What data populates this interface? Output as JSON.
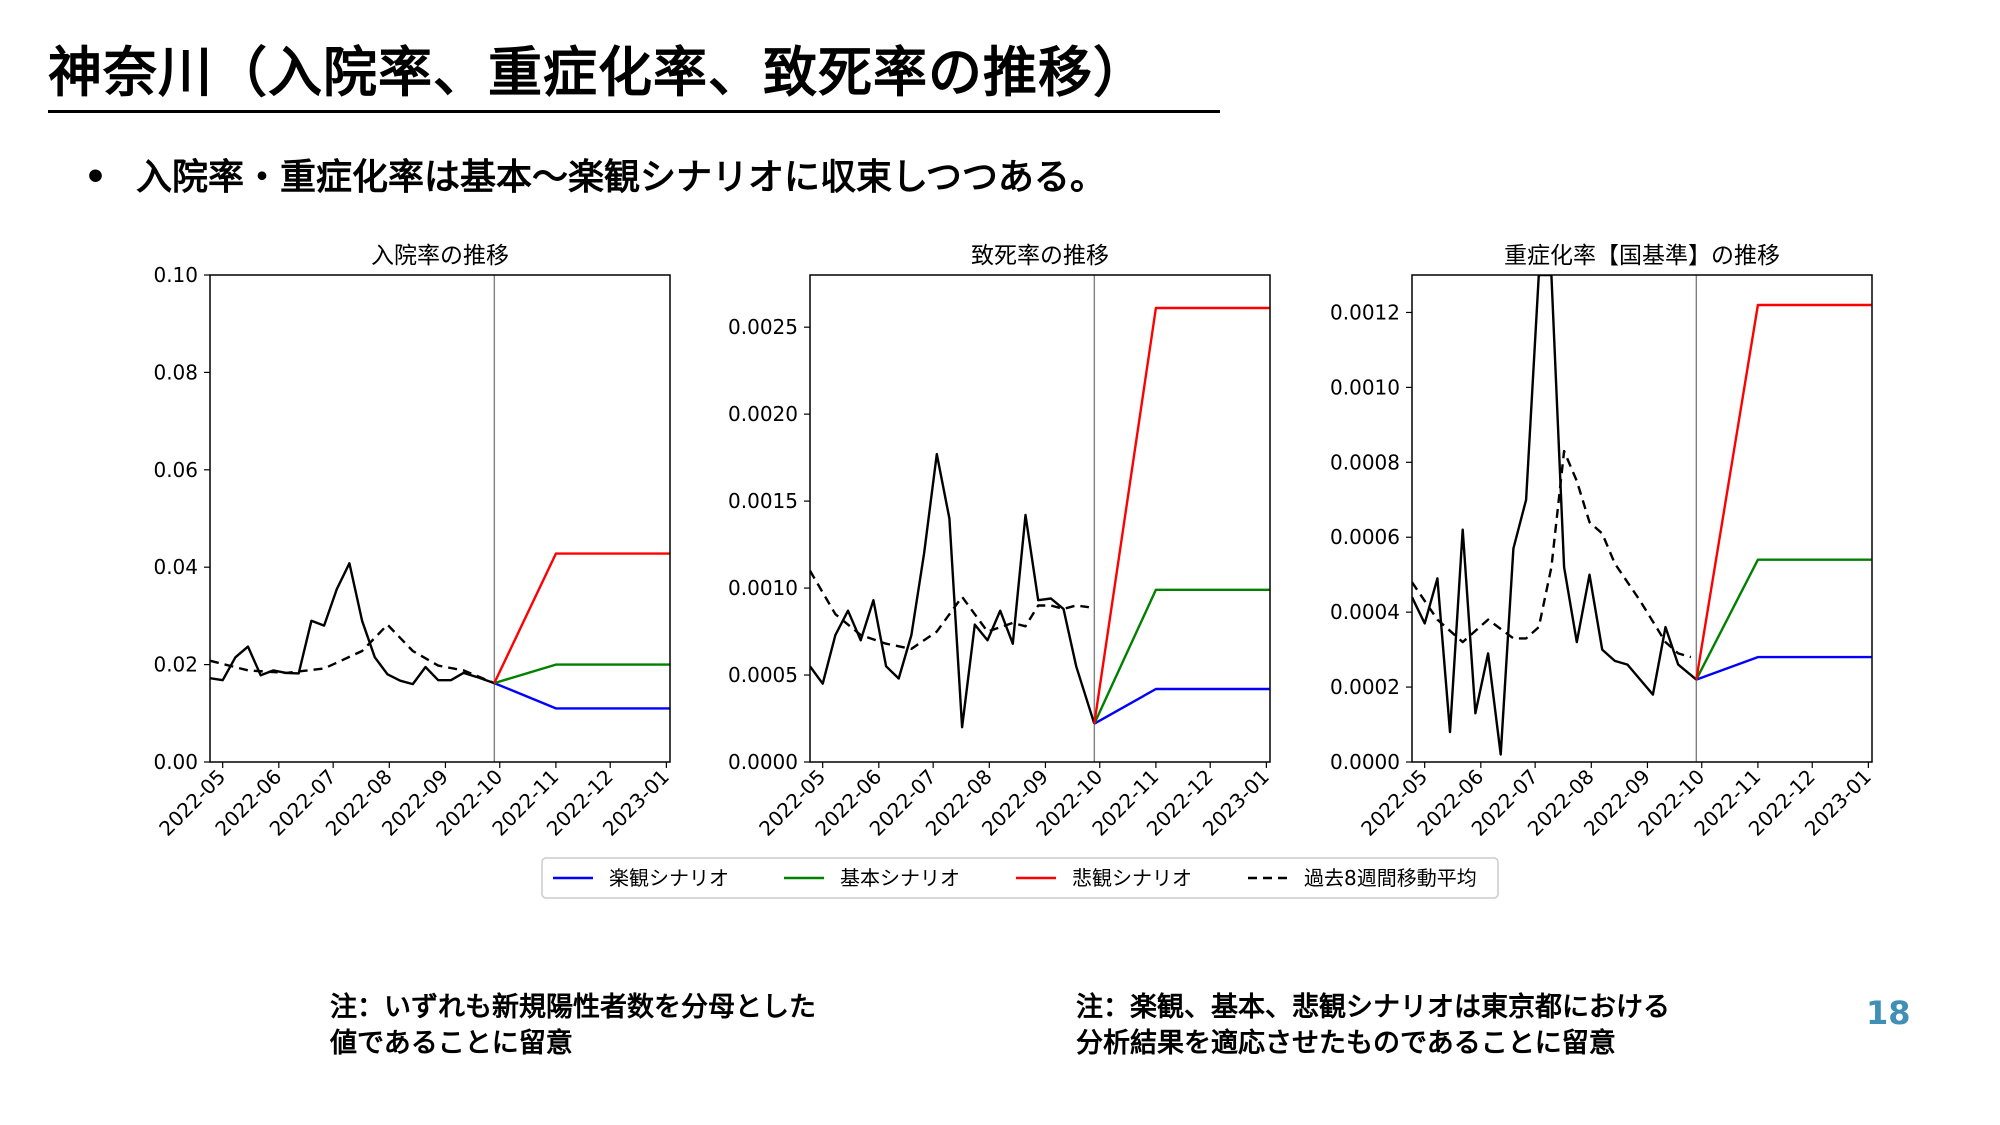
{
  "slide": {
    "title": "神奈川（入院率、重症化率、致死率の推移）",
    "bullet": "入院率・重症化率は基本〜楽観シナリオに収束しつつある。",
    "bullet_marker": "•",
    "note_left": [
      "注：いずれも新規陽性者数を分母とした",
      "値であることに留意"
    ],
    "note_right": [
      "注：楽観、基本、悲観シナリオは東京都における",
      "分析結果を適応させたものであることに留意"
    ],
    "page_number": "18"
  },
  "colors": {
    "optimistic": "#0000ff",
    "base": "#008000",
    "pessimistic": "#ff0000",
    "actual": "#000000",
    "moving_avg": "#000000",
    "divider": "#808080",
    "page_number": "#3f8fb7"
  },
  "legend": [
    {
      "key": "optimistic",
      "label": "楽観シナリオ",
      "style": "solid"
    },
    {
      "key": "base",
      "label": "基本シナリオ",
      "style": "solid"
    },
    {
      "key": "pessimistic",
      "label": "悲観シナリオ",
      "style": "solid"
    },
    {
      "key": "moving_avg",
      "label": "過去8週間移動平均",
      "style": "dashed"
    }
  ],
  "chart_data": [
    {
      "type": "line",
      "title": "入院率の推移",
      "xlabel": "",
      "ylabel": "",
      "x_ticks": [
        "2022-05",
        "2022-06",
        "2022-07",
        "2022-08",
        "2022-09",
        "2022-10",
        "2022-11",
        "2022-12",
        "2023-01"
      ],
      "xlim": [
        "2022-04-24",
        "2023-01-03"
      ],
      "ylim": [
        0,
        0.1
      ],
      "y_ticks": [
        "0.00",
        "0.02",
        "0.04",
        "0.06",
        "0.08",
        "0.10"
      ],
      "divider_x": "2022-09-28",
      "grid": false,
      "series": [
        {
          "key": "actual",
          "x": [
            "2022-04-24",
            "2022-05-01",
            "2022-05-08",
            "2022-05-15",
            "2022-05-22",
            "2022-05-29",
            "2022-06-05",
            "2022-06-12",
            "2022-06-19",
            "2022-06-26",
            "2022-07-03",
            "2022-07-10",
            "2022-07-17",
            "2022-07-24",
            "2022-07-31",
            "2022-08-07",
            "2022-08-14",
            "2022-08-21",
            "2022-08-28",
            "2022-09-04",
            "2022-09-11",
            "2022-09-18",
            "2022-09-25",
            "2022-09-28"
          ],
          "y": [
            0.0172,
            0.0168,
            0.0215,
            0.0237,
            0.0178,
            0.0188,
            0.0183,
            0.0182,
            0.029,
            0.028,
            0.0355,
            0.0408,
            0.029,
            0.0215,
            0.018,
            0.0167,
            0.016,
            0.0195,
            0.0168,
            0.0168,
            0.0183,
            0.0175,
            0.0166,
            0.0162
          ]
        },
        {
          "key": "moving_avg",
          "x": [
            "2022-04-24",
            "2022-05-15",
            "2022-06-05",
            "2022-06-26",
            "2022-07-17",
            "2022-07-31",
            "2022-08-14",
            "2022-08-28",
            "2022-09-11",
            "2022-09-28"
          ],
          "y": [
            0.0208,
            0.0188,
            0.0183,
            0.0192,
            0.0228,
            0.0282,
            0.0228,
            0.0198,
            0.0188,
            0.0162
          ]
        },
        {
          "key": "optimistic",
          "x": [
            "2022-09-28",
            "2022-11-01",
            "2023-01-03"
          ],
          "y": [
            0.0162,
            0.011,
            0.011
          ]
        },
        {
          "key": "base",
          "x": [
            "2022-09-28",
            "2022-11-01",
            "2023-01-03"
          ],
          "y": [
            0.0162,
            0.02,
            0.02
          ]
        },
        {
          "key": "pessimistic",
          "x": [
            "2022-09-28",
            "2022-11-01",
            "2023-01-03"
          ],
          "y": [
            0.0162,
            0.0428,
            0.0428
          ]
        }
      ]
    },
    {
      "type": "line",
      "title": "致死率の推移",
      "xlabel": "",
      "ylabel": "",
      "x_ticks": [
        "2022-05",
        "2022-06",
        "2022-07",
        "2022-08",
        "2022-09",
        "2022-10",
        "2022-11",
        "2022-12",
        "2023-01"
      ],
      "xlim": [
        "2022-04-24",
        "2023-01-03"
      ],
      "ylim": [
        0,
        0.0028
      ],
      "y_ticks": [
        "0.0000",
        "0.0005",
        "0.0010",
        "0.0015",
        "0.0020",
        "0.0025"
      ],
      "divider_x": "2022-09-28",
      "grid": false,
      "series": [
        {
          "key": "actual",
          "x": [
            "2022-04-24",
            "2022-05-01",
            "2022-05-08",
            "2022-05-15",
            "2022-05-22",
            "2022-05-29",
            "2022-06-05",
            "2022-06-12",
            "2022-06-19",
            "2022-06-26",
            "2022-07-03",
            "2022-07-10",
            "2022-07-17",
            "2022-07-24",
            "2022-07-31",
            "2022-08-07",
            "2022-08-14",
            "2022-08-21",
            "2022-08-28",
            "2022-09-04",
            "2022-09-11",
            "2022-09-18",
            "2022-09-28"
          ],
          "y": [
            0.00055,
            0.00045,
            0.00073,
            0.00087,
            0.0007,
            0.00093,
            0.00055,
            0.00048,
            0.00073,
            0.0012,
            0.00177,
            0.0014,
            0.0002,
            0.00079,
            0.0007,
            0.00087,
            0.00068,
            0.00142,
            0.00093,
            0.00094,
            0.00088,
            0.00055,
            0.00022
          ]
        },
        {
          "key": "moving_avg",
          "x": [
            "2022-04-24",
            "2022-05-08",
            "2022-05-22",
            "2022-06-05",
            "2022-06-19",
            "2022-07-03",
            "2022-07-17",
            "2022-07-31",
            "2022-08-14",
            "2022-08-21",
            "2022-08-28",
            "2022-09-04",
            "2022-09-11",
            "2022-09-18",
            "2022-09-25"
          ],
          "y": [
            0.0011,
            0.00085,
            0.00073,
            0.00068,
            0.00065,
            0.00075,
            0.00095,
            0.00075,
            0.0008,
            0.00078,
            0.0009,
            0.0009,
            0.00088,
            0.0009,
            0.00089
          ]
        },
        {
          "key": "optimistic",
          "x": [
            "2022-09-28",
            "2022-11-01",
            "2023-01-03"
          ],
          "y": [
            0.00022,
            0.00042,
            0.00042
          ]
        },
        {
          "key": "base",
          "x": [
            "2022-09-28",
            "2022-11-01",
            "2023-01-03"
          ],
          "y": [
            0.00022,
            0.00099,
            0.00099
          ]
        },
        {
          "key": "pessimistic",
          "x": [
            "2022-09-28",
            "2022-11-01",
            "2023-01-03"
          ],
          "y": [
            0.00022,
            0.00261,
            0.00261
          ]
        }
      ]
    },
    {
      "type": "line",
      "title": "重症化率【国基準】の推移",
      "xlabel": "",
      "ylabel": "",
      "x_ticks": [
        "2022-05",
        "2022-06",
        "2022-07",
        "2022-08",
        "2022-09",
        "2022-10",
        "2022-11",
        "2022-12",
        "2023-01"
      ],
      "xlim": [
        "2022-04-24",
        "2023-01-03"
      ],
      "ylim": [
        0,
        0.0013
      ],
      "y_ticks": [
        "0.0000",
        "0.0002",
        "0.0004",
        "0.0006",
        "0.0008",
        "0.0010",
        "0.0012"
      ],
      "divider_x": "2022-09-28",
      "grid": false,
      "series": [
        {
          "key": "actual",
          "x": [
            "2022-04-24",
            "2022-05-01",
            "2022-05-08",
            "2022-05-15",
            "2022-05-22",
            "2022-05-29",
            "2022-06-05",
            "2022-06-12",
            "2022-06-19",
            "2022-06-26",
            "2022-07-03",
            "2022-07-10",
            "2022-07-17",
            "2022-07-24",
            "2022-07-31",
            "2022-08-07",
            "2022-08-14",
            "2022-08-21",
            "2022-08-28",
            "2022-09-04",
            "2022-09-11",
            "2022-09-18",
            "2022-09-28"
          ],
          "y": [
            0.00044,
            0.00037,
            0.00049,
            8e-05,
            0.00062,
            0.00013,
            0.00029,
            2e-05,
            0.00057,
            0.0007,
            0.0013,
            0.0013,
            0.00052,
            0.00032,
            0.0005,
            0.0003,
            0.00027,
            0.00026,
            0.00022,
            0.00018,
            0.00036,
            0.00026,
            0.00022
          ]
        },
        {
          "key": "moving_avg",
          "x": [
            "2022-04-24",
            "2022-05-08",
            "2022-05-22",
            "2022-06-05",
            "2022-06-19",
            "2022-06-26",
            "2022-07-03",
            "2022-07-10",
            "2022-07-17",
            "2022-07-24",
            "2022-07-31",
            "2022-08-07",
            "2022-08-14",
            "2022-08-28",
            "2022-09-11",
            "2022-09-18",
            "2022-09-25"
          ],
          "y": [
            0.00048,
            0.00038,
            0.00032,
            0.00038,
            0.00033,
            0.00033,
            0.00036,
            0.00052,
            0.00083,
            0.00075,
            0.00064,
            0.00061,
            0.00053,
            0.00043,
            0.00032,
            0.00029,
            0.00028
          ]
        },
        {
          "key": "optimistic",
          "x": [
            "2022-09-28",
            "2022-11-01",
            "2023-01-03"
          ],
          "y": [
            0.00022,
            0.00028,
            0.00028
          ]
        },
        {
          "key": "base",
          "x": [
            "2022-09-28",
            "2022-11-01",
            "2023-01-03"
          ],
          "y": [
            0.00022,
            0.00054,
            0.00054
          ]
        },
        {
          "key": "pessimistic",
          "x": [
            "2022-09-28",
            "2022-11-01",
            "2023-01-03"
          ],
          "y": [
            0.00022,
            0.00122,
            0.00122
          ]
        }
      ]
    }
  ]
}
